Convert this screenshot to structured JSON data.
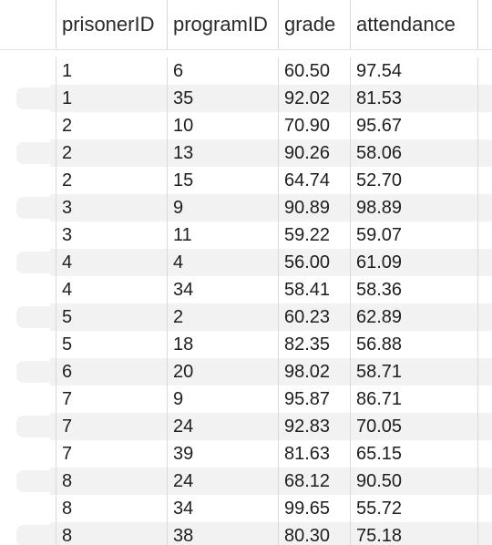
{
  "table": {
    "columns": [
      "prisonerID",
      "programID",
      "grade",
      "attendance"
    ],
    "rows": [
      [
        "1",
        "6",
        "60.50",
        "97.54"
      ],
      [
        "1",
        "35",
        "92.02",
        "81.53"
      ],
      [
        "2",
        "10",
        "70.90",
        "95.67"
      ],
      [
        "2",
        "13",
        "90.26",
        "58.06"
      ],
      [
        "2",
        "15",
        "64.74",
        "52.70"
      ],
      [
        "3",
        "9",
        "90.89",
        "98.89"
      ],
      [
        "3",
        "11",
        "59.22",
        "59.07"
      ],
      [
        "4",
        "4",
        "56.00",
        "61.09"
      ],
      [
        "4",
        "34",
        "58.41",
        "58.36"
      ],
      [
        "5",
        "2",
        "60.23",
        "62.89"
      ],
      [
        "5",
        "18",
        "82.35",
        "56.88"
      ],
      [
        "6",
        "20",
        "98.02",
        "58.71"
      ],
      [
        "7",
        "9",
        "95.87",
        "86.71"
      ],
      [
        "7",
        "24",
        "92.83",
        "70.05"
      ],
      [
        "7",
        "39",
        "81.63",
        "65.15"
      ],
      [
        "8",
        "24",
        "68.12",
        "90.50"
      ],
      [
        "8",
        "34",
        "99.65",
        "55.72"
      ],
      [
        "8",
        "38",
        "80.30",
        "75.18"
      ]
    ]
  }
}
